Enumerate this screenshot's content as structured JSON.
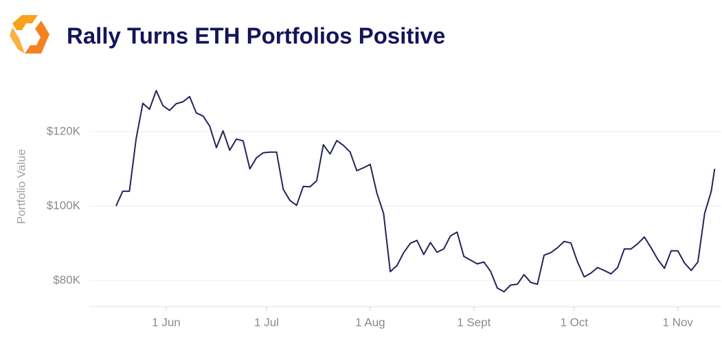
{
  "chart_data": {
    "type": "line",
    "title": "Rally Turns ETH Portfolios Positive",
    "ylabel": "Portfolio Value",
    "x": [
      "17 May",
      "19 May",
      "21 May",
      "23 May",
      "25 May",
      "27 May",
      "29 May",
      "31 May",
      "2 Jun",
      "4 Jun",
      "6 Jun",
      "8 Jun",
      "10 Jun",
      "12 Jun",
      "14 Jun",
      "16 Jun",
      "18 Jun",
      "20 Jun",
      "22 Jun",
      "24 Jun",
      "26 Jun",
      "28 Jun",
      "30 Jun",
      "2 Jul",
      "4 Jul",
      "6 Jul",
      "8 Jul",
      "10 Jul",
      "12 Jul",
      "14 Jul",
      "16 Jul",
      "18 Jul",
      "20 Jul",
      "22 Jul",
      "24 Jul",
      "26 Jul",
      "28 Jul",
      "30 Jul",
      "1 Aug",
      "3 Aug",
      "5 Aug",
      "7 Aug",
      "9 Aug",
      "11 Aug",
      "13 Aug",
      "15 Aug",
      "17 Aug",
      "19 Aug",
      "21 Aug",
      "23 Aug",
      "25 Aug",
      "27 Aug",
      "29 Aug",
      "31 Aug",
      "2 Sept",
      "4 Sept",
      "6 Sept",
      "8 Sept",
      "10 Sept",
      "12 Sept",
      "14 Sept",
      "16 Sept",
      "18 Sept",
      "20 Sept",
      "22 Sept",
      "24 Sept",
      "26 Sept",
      "28 Sept",
      "30 Sept",
      "2 Oct",
      "4 Oct",
      "6 Oct",
      "8 Oct",
      "10 Oct",
      "12 Oct",
      "14 Oct",
      "16 Oct",
      "18 Oct",
      "20 Oct",
      "22 Oct",
      "24 Oct",
      "26 Oct",
      "28 Oct",
      "30 Oct",
      "1 Nov",
      "3 Nov",
      "5 Nov",
      "7 Nov",
      "9 Nov",
      "11 Nov",
      "12 Nov"
    ],
    "series": [
      {
        "name": "Portfolio Value",
        "color": "#23235a",
        "values": [
          100000,
          104000,
          104000,
          118000,
          127600,
          126000,
          131000,
          127000,
          125700,
          127500,
          128000,
          129400,
          125000,
          124200,
          121500,
          115700,
          120200,
          115000,
          118000,
          117500,
          110000,
          113000,
          114300,
          114500,
          114500,
          104500,
          101500,
          100200,
          105300,
          105200,
          106800,
          116500,
          114000,
          117600,
          116300,
          114500,
          109500,
          110300,
          111200,
          103500,
          98000,
          82400,
          84000,
          87500,
          90000,
          90800,
          87000,
          90200,
          87600,
          88500,
          92000,
          93000,
          86500,
          85500,
          84500,
          85000,
          82500,
          78000,
          77000,
          78800,
          79000,
          81600,
          79500,
          79000,
          86800,
          87500,
          88800,
          90500,
          90100,
          85000,
          81000,
          82000,
          83500,
          82700,
          81800,
          83500,
          88500,
          88500,
          89900,
          91700,
          88800,
          85700,
          83300,
          88000,
          88000,
          84700,
          82700,
          85000,
          98000,
          104000,
          110000
        ]
      }
    ],
    "xlim": [
      "9 May",
      "14 Nov"
    ],
    "xticks": [
      "1 Jun",
      "1 Jul",
      "1 Aug",
      "1 Sept",
      "1 Oct",
      "1 Nov"
    ],
    "ylim": [
      73000,
      136000
    ],
    "yticks": [
      {
        "value": 80000,
        "label": "$80K"
      },
      {
        "value": 100000,
        "label": "$100K"
      },
      {
        "value": 120000,
        "label": "$120K"
      }
    ],
    "grid": true
  }
}
